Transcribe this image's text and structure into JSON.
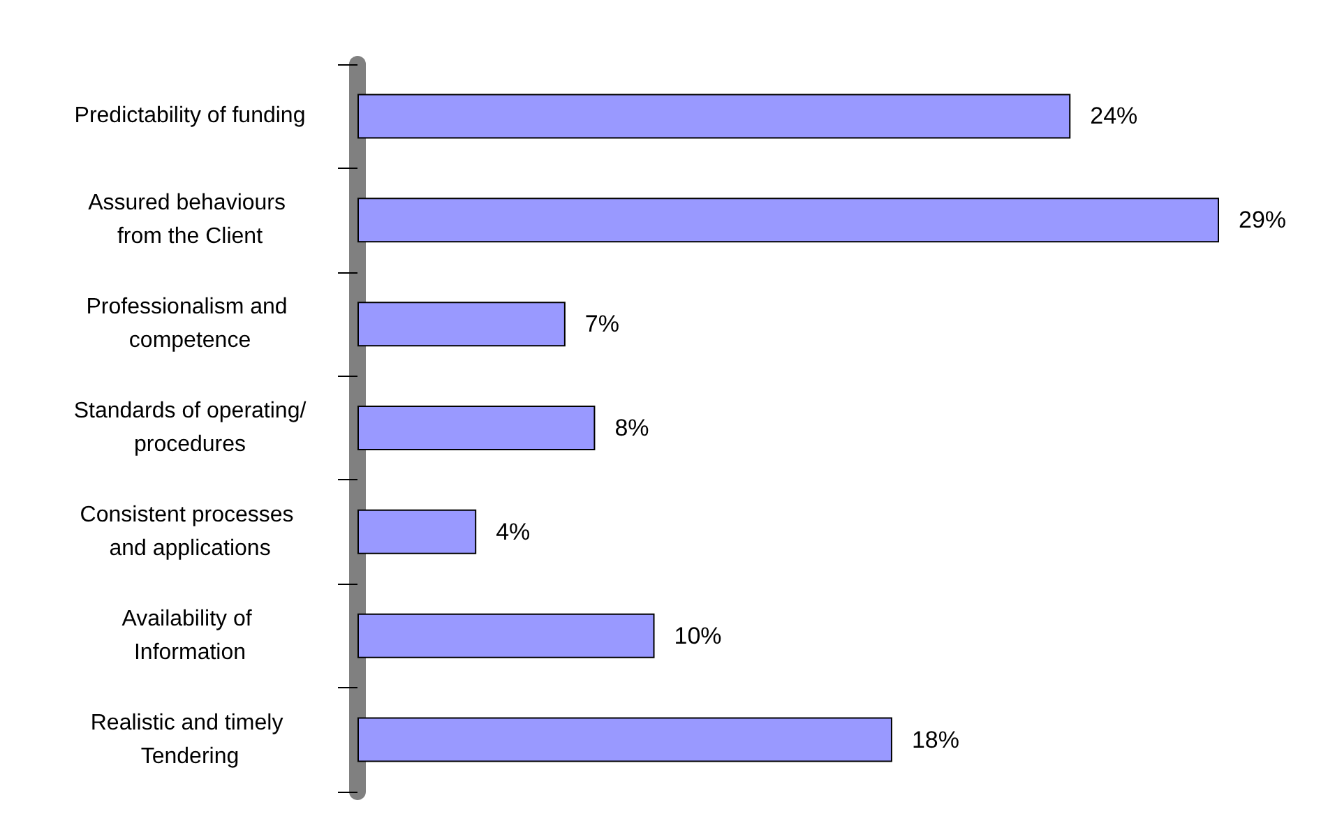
{
  "chart_data": {
    "type": "bar",
    "orientation": "horizontal",
    "categories": [
      "Predictability of funding",
      "Assured behaviours from the Client",
      "Professionalism and competence",
      "Standards of operating/procedures",
      "Consistent processes and applications",
      "Availability of Information",
      "Realistic and timely Tendering"
    ],
    "values": [
      24,
      29,
      7,
      8,
      4,
      10,
      18
    ],
    "value_labels": [
      "24%",
      "29%",
      "7%",
      "8%",
      "4%",
      "10%",
      "18%"
    ],
    "color": "#9999ff",
    "tick_labels": "y"
  }
}
